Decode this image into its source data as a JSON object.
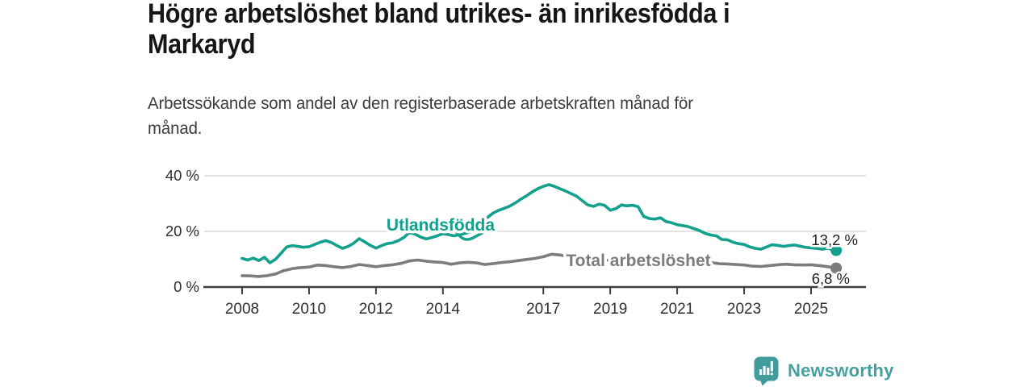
{
  "header": {
    "title_lines": [
      "Högre arbetslöshet bland utrikes- än inrikesfödda i",
      "Markaryd"
    ],
    "subtitle_lines": [
      "Arbetssökande som andel av den registerbaserade arbetskraften månad för",
      "månad."
    ]
  },
  "branding": {
    "name": "Newsworthy",
    "icon": "bar-chart-speech-bubble-icon",
    "color": "#46a0a0"
  },
  "chart_data": {
    "type": "line",
    "title": "Högre arbetslöshet bland utrikes- än inrikesfödda i Markaryd",
    "subtitle": "Arbetssökande som andel av den registerbaserade arbetskraften månad för månad.",
    "grid": "horizontal-only",
    "legend": "inline-series-labels",
    "x_axis": {
      "tick_years": [
        2008,
        2010,
        2012,
        2014,
        2017,
        2019,
        2021,
        2023,
        2025
      ],
      "tick_labels": [
        "2008",
        "2010",
        "2012",
        "2014",
        "2017",
        "2019",
        "2021",
        "2023",
        "2025"
      ],
      "range_years": [
        2008,
        2025.75
      ]
    },
    "y_axis": {
      "tick_values": [
        0,
        20,
        40
      ],
      "tick_labels": [
        "0 %",
        "20 %",
        "40 %"
      ],
      "unit": "%",
      "range": [
        0,
        40
      ]
    },
    "series": [
      {
        "name": "Utlandsfödda",
        "color": "#13a08d",
        "end_value": 13.2,
        "end_label": "13,2 %",
        "points": [
          [
            2008.0,
            10.3
          ],
          [
            2008.17,
            9.7
          ],
          [
            2008.33,
            10.4
          ],
          [
            2008.5,
            9.5
          ],
          [
            2008.67,
            10.7
          ],
          [
            2008.83,
            8.7
          ],
          [
            2009.0,
            10.0
          ],
          [
            2009.17,
            12.2
          ],
          [
            2009.33,
            14.4
          ],
          [
            2009.5,
            14.9
          ],
          [
            2009.67,
            14.6
          ],
          [
            2009.83,
            14.3
          ],
          [
            2010.0,
            14.5
          ],
          [
            2010.17,
            15.3
          ],
          [
            2010.33,
            16.1
          ],
          [
            2010.5,
            16.7
          ],
          [
            2010.67,
            16.0
          ],
          [
            2010.83,
            14.9
          ],
          [
            2011.0,
            13.9
          ],
          [
            2011.17,
            14.6
          ],
          [
            2011.33,
            15.7
          ],
          [
            2011.5,
            17.4
          ],
          [
            2011.67,
            16.2
          ],
          [
            2011.83,
            15.0
          ],
          [
            2012.0,
            14.0
          ],
          [
            2012.17,
            14.9
          ],
          [
            2012.33,
            15.6
          ],
          [
            2012.5,
            15.9
          ],
          [
            2012.67,
            16.7
          ],
          [
            2012.83,
            17.8
          ],
          [
            2013.0,
            19.6
          ],
          [
            2013.17,
            19.0
          ],
          [
            2013.33,
            18.0
          ],
          [
            2013.5,
            17.3
          ],
          [
            2013.67,
            17.8
          ],
          [
            2013.83,
            18.4
          ],
          [
            2014.0,
            19.2
          ],
          [
            2014.17,
            18.8
          ],
          [
            2014.33,
            18.4
          ],
          [
            2014.5,
            18.8
          ],
          [
            2014.67,
            19.3
          ],
          [
            2014.83,
            19.8
          ],
          [
            2015.0,
            21.0
          ],
          [
            2015.17,
            23.0
          ],
          [
            2015.33,
            25.0
          ],
          [
            2015.5,
            26.6
          ],
          [
            2015.67,
            27.6
          ],
          [
            2015.83,
            28.3
          ],
          [
            2016.0,
            29.1
          ],
          [
            2016.17,
            30.3
          ],
          [
            2016.33,
            31.6
          ],
          [
            2016.5,
            32.8
          ],
          [
            2016.67,
            34.2
          ],
          [
            2016.83,
            35.3
          ],
          [
            2017.0,
            36.2
          ],
          [
            2017.17,
            36.8
          ],
          [
            2017.33,
            36.2
          ],
          [
            2017.5,
            35.3
          ],
          [
            2017.67,
            34.5
          ],
          [
            2017.83,
            33.6
          ],
          [
            2018.0,
            32.6
          ],
          [
            2018.17,
            31.0
          ],
          [
            2018.33,
            29.5
          ],
          [
            2018.5,
            29.0
          ],
          [
            2018.67,
            29.8
          ],
          [
            2018.83,
            29.4
          ],
          [
            2019.0,
            27.6
          ],
          [
            2019.17,
            28.2
          ],
          [
            2019.33,
            29.5
          ],
          [
            2019.5,
            29.2
          ],
          [
            2019.67,
            29.4
          ],
          [
            2019.83,
            28.9
          ],
          [
            2020.0,
            25.4
          ],
          [
            2020.17,
            24.6
          ],
          [
            2020.33,
            24.4
          ],
          [
            2020.5,
            24.9
          ],
          [
            2020.67,
            23.5
          ],
          [
            2020.83,
            23.1
          ],
          [
            2021.0,
            22.4
          ],
          [
            2021.17,
            22.1
          ],
          [
            2021.33,
            21.7
          ],
          [
            2021.5,
            21.0
          ],
          [
            2021.67,
            20.3
          ],
          [
            2021.83,
            19.3
          ],
          [
            2022.0,
            18.7
          ],
          [
            2022.17,
            18.4
          ],
          [
            2022.33,
            17.1
          ],
          [
            2022.5,
            17.0
          ],
          [
            2022.67,
            16.1
          ],
          [
            2022.83,
            15.6
          ],
          [
            2023.0,
            15.3
          ],
          [
            2023.17,
            14.4
          ],
          [
            2023.33,
            13.9
          ],
          [
            2023.5,
            13.6
          ],
          [
            2023.67,
            14.4
          ],
          [
            2023.83,
            15.2
          ],
          [
            2024.0,
            15.0
          ],
          [
            2024.17,
            14.6
          ],
          [
            2024.33,
            14.9
          ],
          [
            2024.5,
            15.1
          ],
          [
            2024.67,
            14.7
          ],
          [
            2024.83,
            14.3
          ],
          [
            2025.0,
            14.1
          ],
          [
            2025.17,
            13.9
          ],
          [
            2025.33,
            13.6
          ],
          [
            2025.5,
            13.9
          ],
          [
            2025.67,
            13.5
          ],
          [
            2025.75,
            13.2
          ]
        ]
      },
      {
        "name": "Total arbetslöshet",
        "color": "#7c7c7c",
        "end_value": 6.8,
        "end_label": "6,8 %",
        "points": [
          [
            2008.0,
            4.1
          ],
          [
            2008.25,
            4.0
          ],
          [
            2008.5,
            3.8
          ],
          [
            2008.75,
            4.1
          ],
          [
            2009.0,
            4.7
          ],
          [
            2009.25,
            5.9
          ],
          [
            2009.5,
            6.6
          ],
          [
            2009.75,
            7.0
          ],
          [
            2010.0,
            7.2
          ],
          [
            2010.25,
            7.9
          ],
          [
            2010.5,
            7.7
          ],
          [
            2010.75,
            7.3
          ],
          [
            2011.0,
            7.0
          ],
          [
            2011.25,
            7.4
          ],
          [
            2011.5,
            8.1
          ],
          [
            2011.75,
            7.7
          ],
          [
            2012.0,
            7.3
          ],
          [
            2012.25,
            7.7
          ],
          [
            2012.5,
            8.0
          ],
          [
            2012.75,
            8.5
          ],
          [
            2013.0,
            9.4
          ],
          [
            2013.25,
            9.7
          ],
          [
            2013.5,
            9.3
          ],
          [
            2013.75,
            9.0
          ],
          [
            2014.0,
            8.8
          ],
          [
            2014.25,
            8.2
          ],
          [
            2014.5,
            8.7
          ],
          [
            2014.75,
            8.9
          ],
          [
            2015.0,
            8.7
          ],
          [
            2015.25,
            8.1
          ],
          [
            2015.5,
            8.4
          ],
          [
            2015.75,
            8.8
          ],
          [
            2016.0,
            9.1
          ],
          [
            2016.25,
            9.5
          ],
          [
            2016.5,
            9.9
          ],
          [
            2016.75,
            10.3
          ],
          [
            2017.0,
            10.9
          ],
          [
            2017.25,
            11.8
          ],
          [
            2017.5,
            11.5
          ],
          [
            2017.75,
            11.0
          ],
          [
            2018.0,
            10.6
          ],
          [
            2018.5,
            10.0
          ],
          [
            2019.0,
            9.6
          ],
          [
            2019.5,
            9.7
          ],
          [
            2020.0,
            10.1
          ],
          [
            2020.5,
            10.3
          ],
          [
            2021.0,
            9.8
          ],
          [
            2021.5,
            9.2
          ],
          [
            2022.0,
            8.8
          ],
          [
            2022.25,
            8.4
          ],
          [
            2022.5,
            8.3
          ],
          [
            2022.75,
            8.1
          ],
          [
            2023.0,
            7.9
          ],
          [
            2023.25,
            7.5
          ],
          [
            2023.5,
            7.4
          ],
          [
            2023.75,
            7.7
          ],
          [
            2024.0,
            8.0
          ],
          [
            2024.25,
            8.2
          ],
          [
            2024.5,
            8.0
          ],
          [
            2024.75,
            7.9
          ],
          [
            2025.0,
            8.0
          ],
          [
            2025.25,
            7.7
          ],
          [
            2025.5,
            7.3
          ],
          [
            2025.75,
            6.8
          ]
        ]
      }
    ]
  }
}
